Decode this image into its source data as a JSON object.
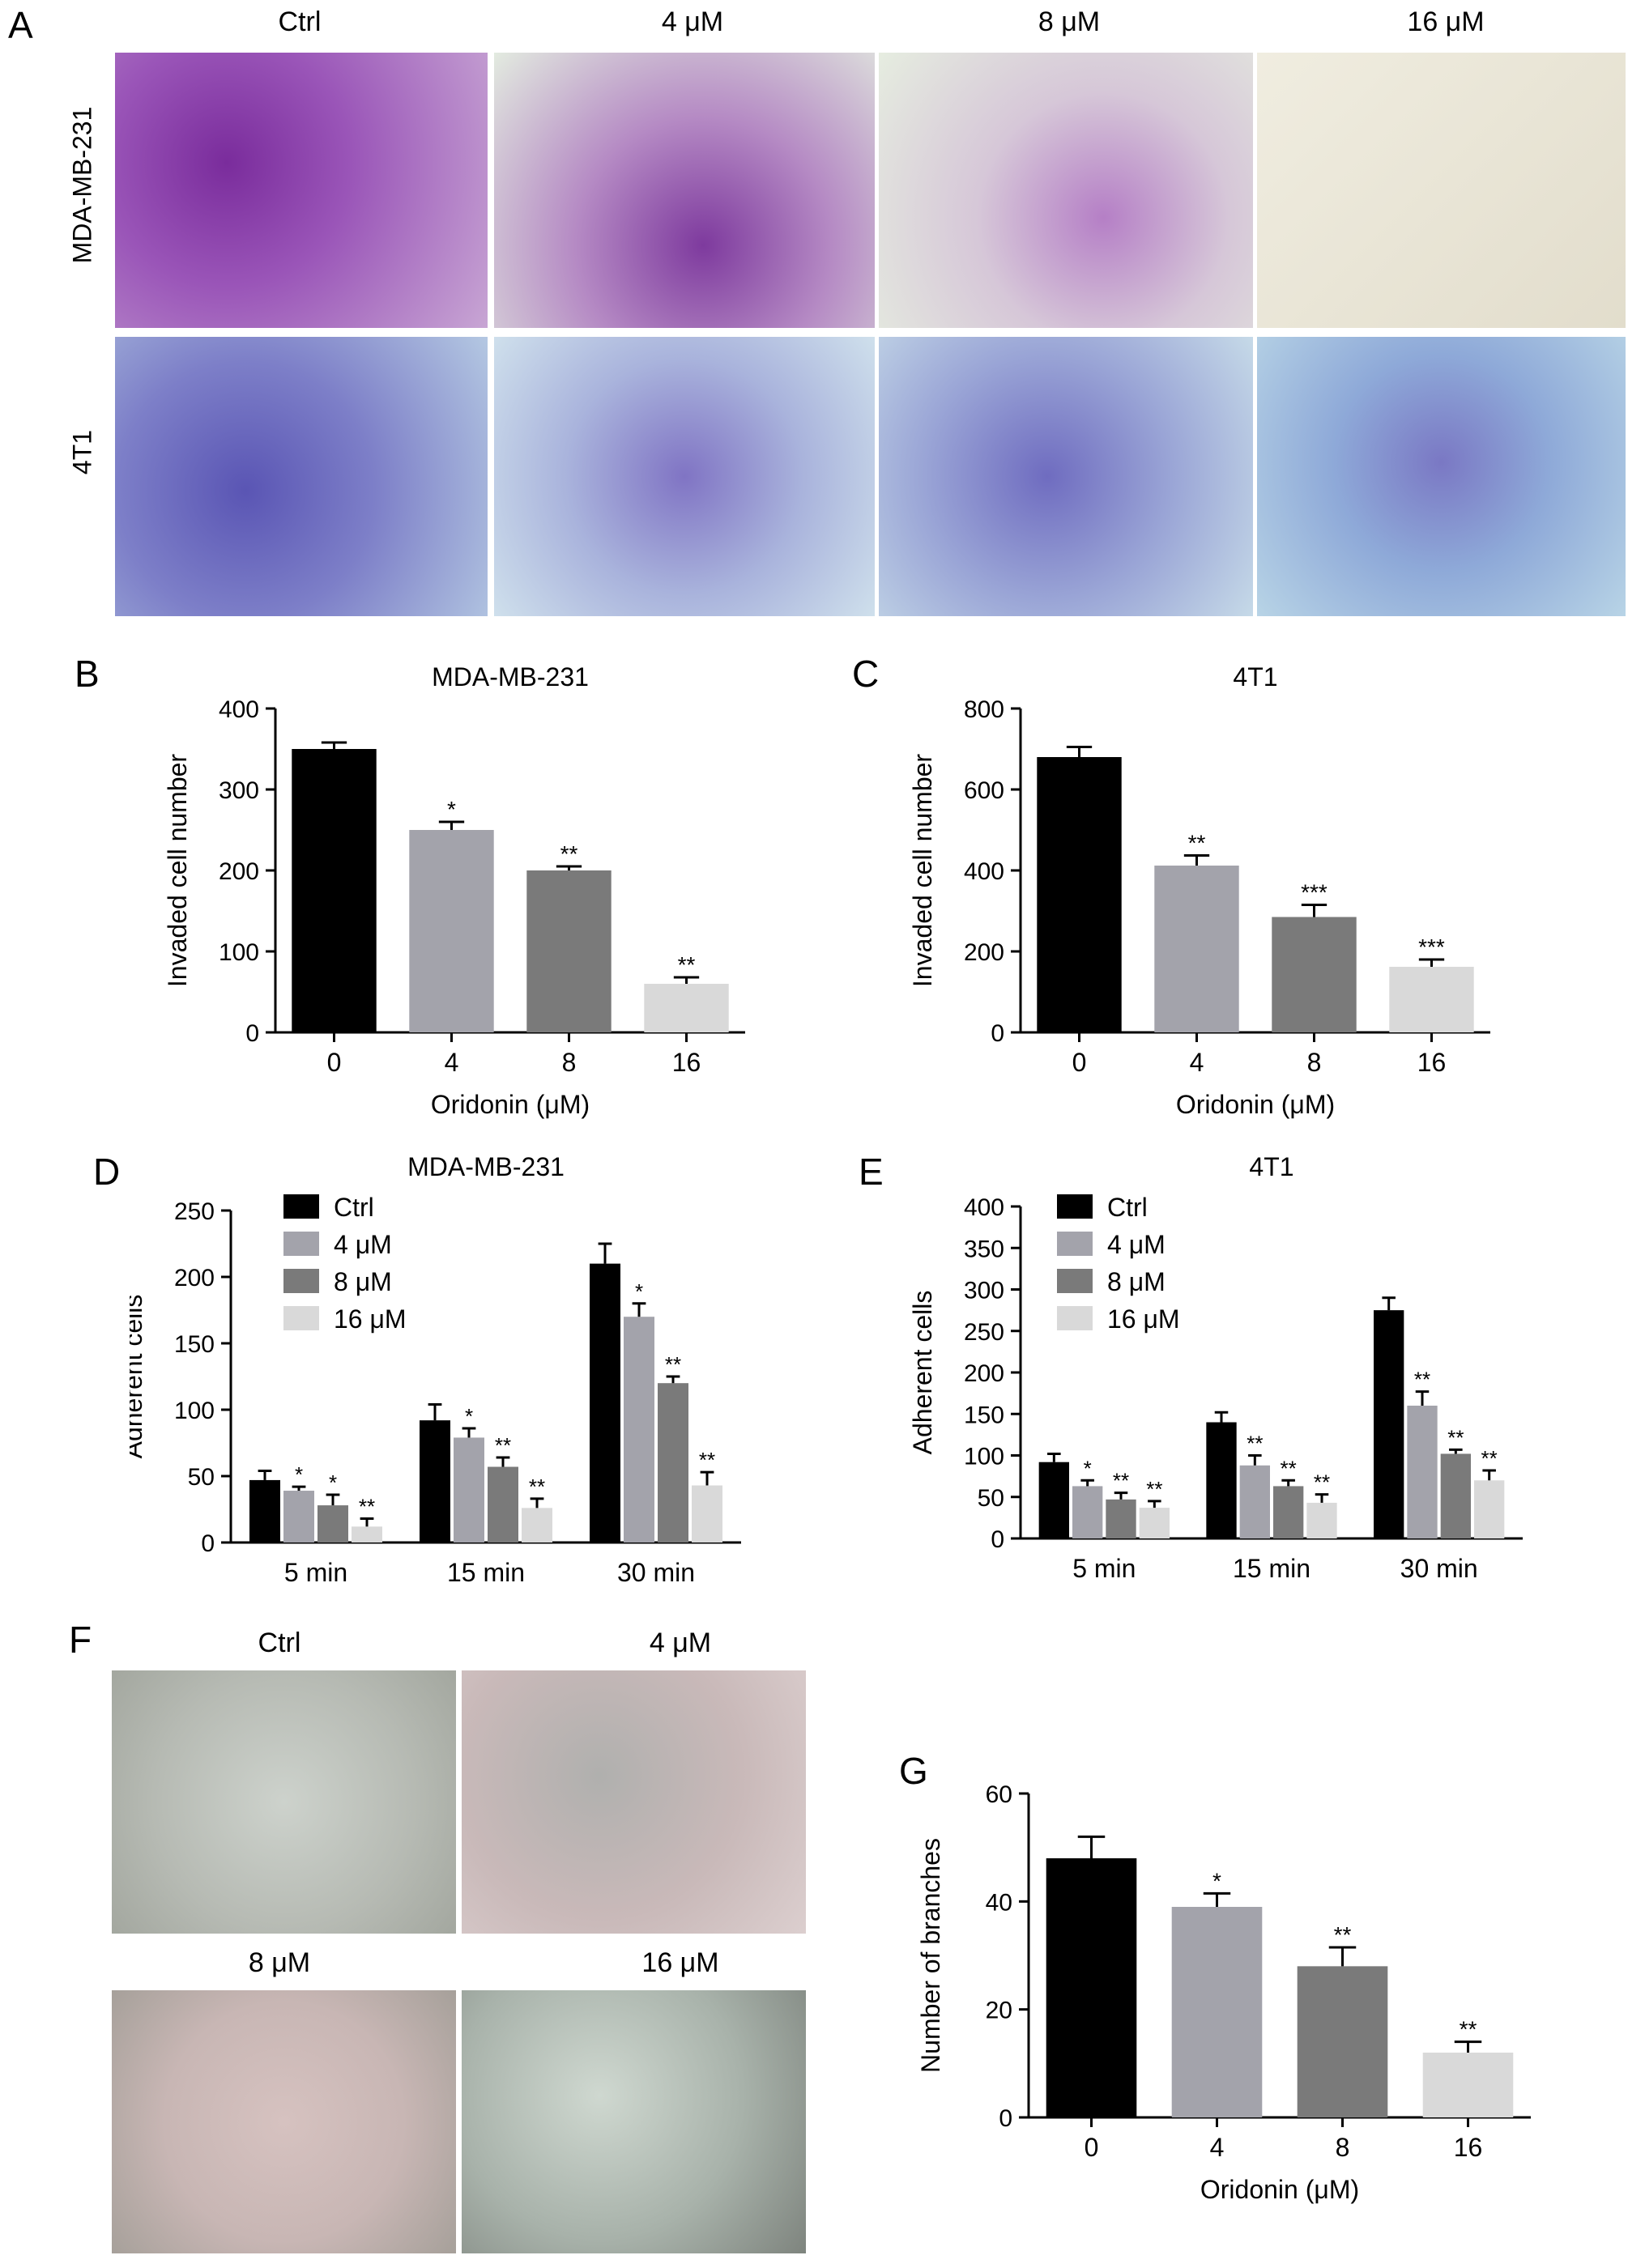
{
  "panel_letters": {
    "A": "A",
    "B": "B",
    "C": "C",
    "D": "D",
    "E": "E",
    "F": "F",
    "G": "G"
  },
  "panelA": {
    "col_labels": [
      "Ctrl",
      "4 μM",
      "8 μM",
      "16 μM"
    ],
    "row_labels": [
      "MDA-MB-231",
      "4T1"
    ]
  },
  "panelF": {
    "labels": [
      "Ctrl",
      "4 μM",
      "8 μM",
      "16 μM"
    ]
  },
  "colors": {
    "ctrl": "#000000",
    "c4": "#a3a3ab",
    "c8": "#7a7a7a",
    "c16": "#d9d9d9",
    "stainA": "#8b3fa8",
    "stainB": "#5a57b5"
  },
  "chart_data": [
    {
      "id": "B",
      "type": "bar",
      "title": "MDA-MB-231",
      "xlabel": "Oridonin (μM)",
      "ylabel": "Invaded cell number",
      "categories": [
        "0",
        "4",
        "8",
        "16"
      ],
      "values": [
        350,
        250,
        200,
        60
      ],
      "errors": [
        8,
        10,
        5,
        8
      ],
      "sig": [
        "",
        "*",
        "**",
        "**"
      ],
      "ylim": [
        0,
        400
      ],
      "yticks": [
        0,
        100,
        200,
        300,
        400
      ]
    },
    {
      "id": "C",
      "type": "bar",
      "title": "4T1",
      "xlabel": "Oridonin (μM)",
      "ylabel": "Invaded cell number",
      "categories": [
        "0",
        "4",
        "8",
        "16"
      ],
      "values": [
        680,
        412,
        285,
        162
      ],
      "errors": [
        25,
        25,
        30,
        18
      ],
      "sig": [
        "",
        "**",
        "***",
        "***"
      ],
      "ylim": [
        0,
        800
      ],
      "yticks": [
        0,
        200,
        400,
        600,
        800
      ]
    },
    {
      "id": "D",
      "type": "bar",
      "title": "MDA-MB-231",
      "ylabel": "Adherent cells",
      "categories": [
        "5 min",
        "15 min",
        "30 min"
      ],
      "legend": [
        "Ctrl",
        "4 μM",
        "8 μM",
        "16 μM"
      ],
      "series": [
        {
          "name": "Ctrl",
          "values": [
            47,
            92,
            210
          ],
          "errors": [
            7,
            12,
            15
          ],
          "sig": [
            "",
            "",
            ""
          ]
        },
        {
          "name": "4 μM",
          "values": [
            39,
            79,
            170
          ],
          "errors": [
            3,
            7,
            10
          ],
          "sig": [
            "*",
            "*",
            "*"
          ]
        },
        {
          "name": "8 μM",
          "values": [
            28,
            57,
            120
          ],
          "errors": [
            8,
            7,
            5
          ],
          "sig": [
            "*",
            "**",
            "**"
          ]
        },
        {
          "name": "16 μM",
          "values": [
            12,
            26,
            43
          ],
          "errors": [
            6,
            7,
            10
          ],
          "sig": [
            "**",
            "**",
            "**"
          ]
        }
      ],
      "ylim": [
        0,
        250
      ],
      "yticks": [
        0,
        50,
        100,
        150,
        200,
        250
      ]
    },
    {
      "id": "E",
      "type": "bar",
      "title": "4T1",
      "ylabel": "Adherent cells",
      "categories": [
        "5 min",
        "15 min",
        "30 min"
      ],
      "legend": [
        "Ctrl",
        "4 μM",
        "8 μM",
        "16 μM"
      ],
      "series": [
        {
          "name": "Ctrl",
          "values": [
            92,
            140,
            275
          ],
          "errors": [
            10,
            12,
            15
          ],
          "sig": [
            "",
            "",
            ""
          ]
        },
        {
          "name": "4 μM",
          "values": [
            63,
            88,
            160
          ],
          "errors": [
            7,
            12,
            17
          ],
          "sig": [
            "*",
            "**",
            "**"
          ]
        },
        {
          "name": "8 μM",
          "values": [
            47,
            63,
            102
          ],
          "errors": [
            8,
            7,
            5
          ],
          "sig": [
            "**",
            "**",
            "**"
          ]
        },
        {
          "name": "16 μM",
          "values": [
            37,
            43,
            70
          ],
          "errors": [
            8,
            10,
            12
          ],
          "sig": [
            "**",
            "**",
            "**"
          ]
        }
      ],
      "ylim": [
        0,
        400
      ],
      "yticks": [
        0,
        50,
        100,
        150,
        200,
        250,
        300,
        350,
        400
      ]
    },
    {
      "id": "G",
      "type": "bar",
      "title": "",
      "xlabel": "Oridonin (μM)",
      "ylabel": "Number of branches",
      "categories": [
        "0",
        "4",
        "8",
        "16"
      ],
      "values": [
        48,
        39,
        28,
        12
      ],
      "errors": [
        4,
        2.5,
        3.5,
        2
      ],
      "sig": [
        "",
        "*",
        "**",
        "**"
      ],
      "ylim": [
        0,
        60
      ],
      "yticks": [
        0,
        20,
        40,
        60
      ]
    }
  ]
}
